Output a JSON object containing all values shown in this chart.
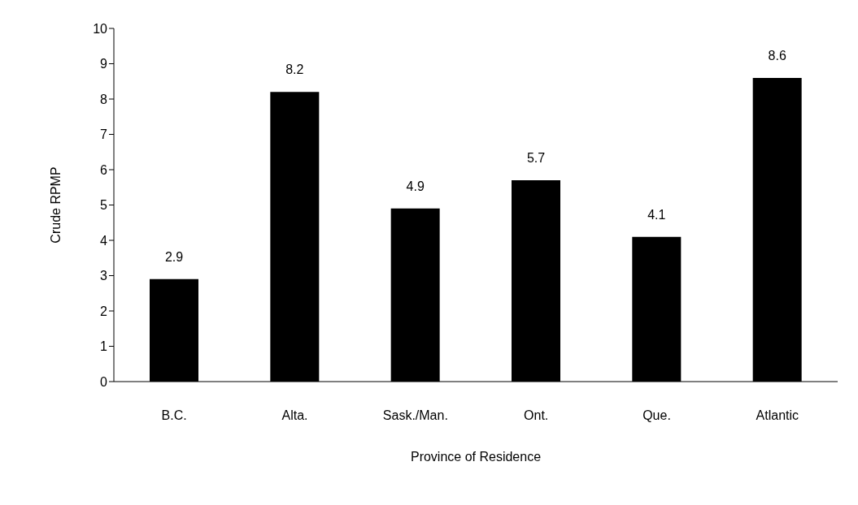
{
  "chart_data": {
    "type": "bar",
    "xlabel": "Province of Residence",
    "ylabel": "Crude RPMP",
    "categories": [
      "B.C.",
      "Alta.",
      "Sask./Man.",
      "Ont.",
      "Que.",
      "Atlantic"
    ],
    "values": [
      2.9,
      8.2,
      4.9,
      5.7,
      4.1,
      8.6
    ],
    "color": "#000000",
    "ylim": [
      0,
      10
    ],
    "yticks": [
      0,
      1,
      2,
      3,
      4,
      5,
      6,
      7,
      8,
      9,
      10
    ],
    "grid": false,
    "data_labels": true
  }
}
